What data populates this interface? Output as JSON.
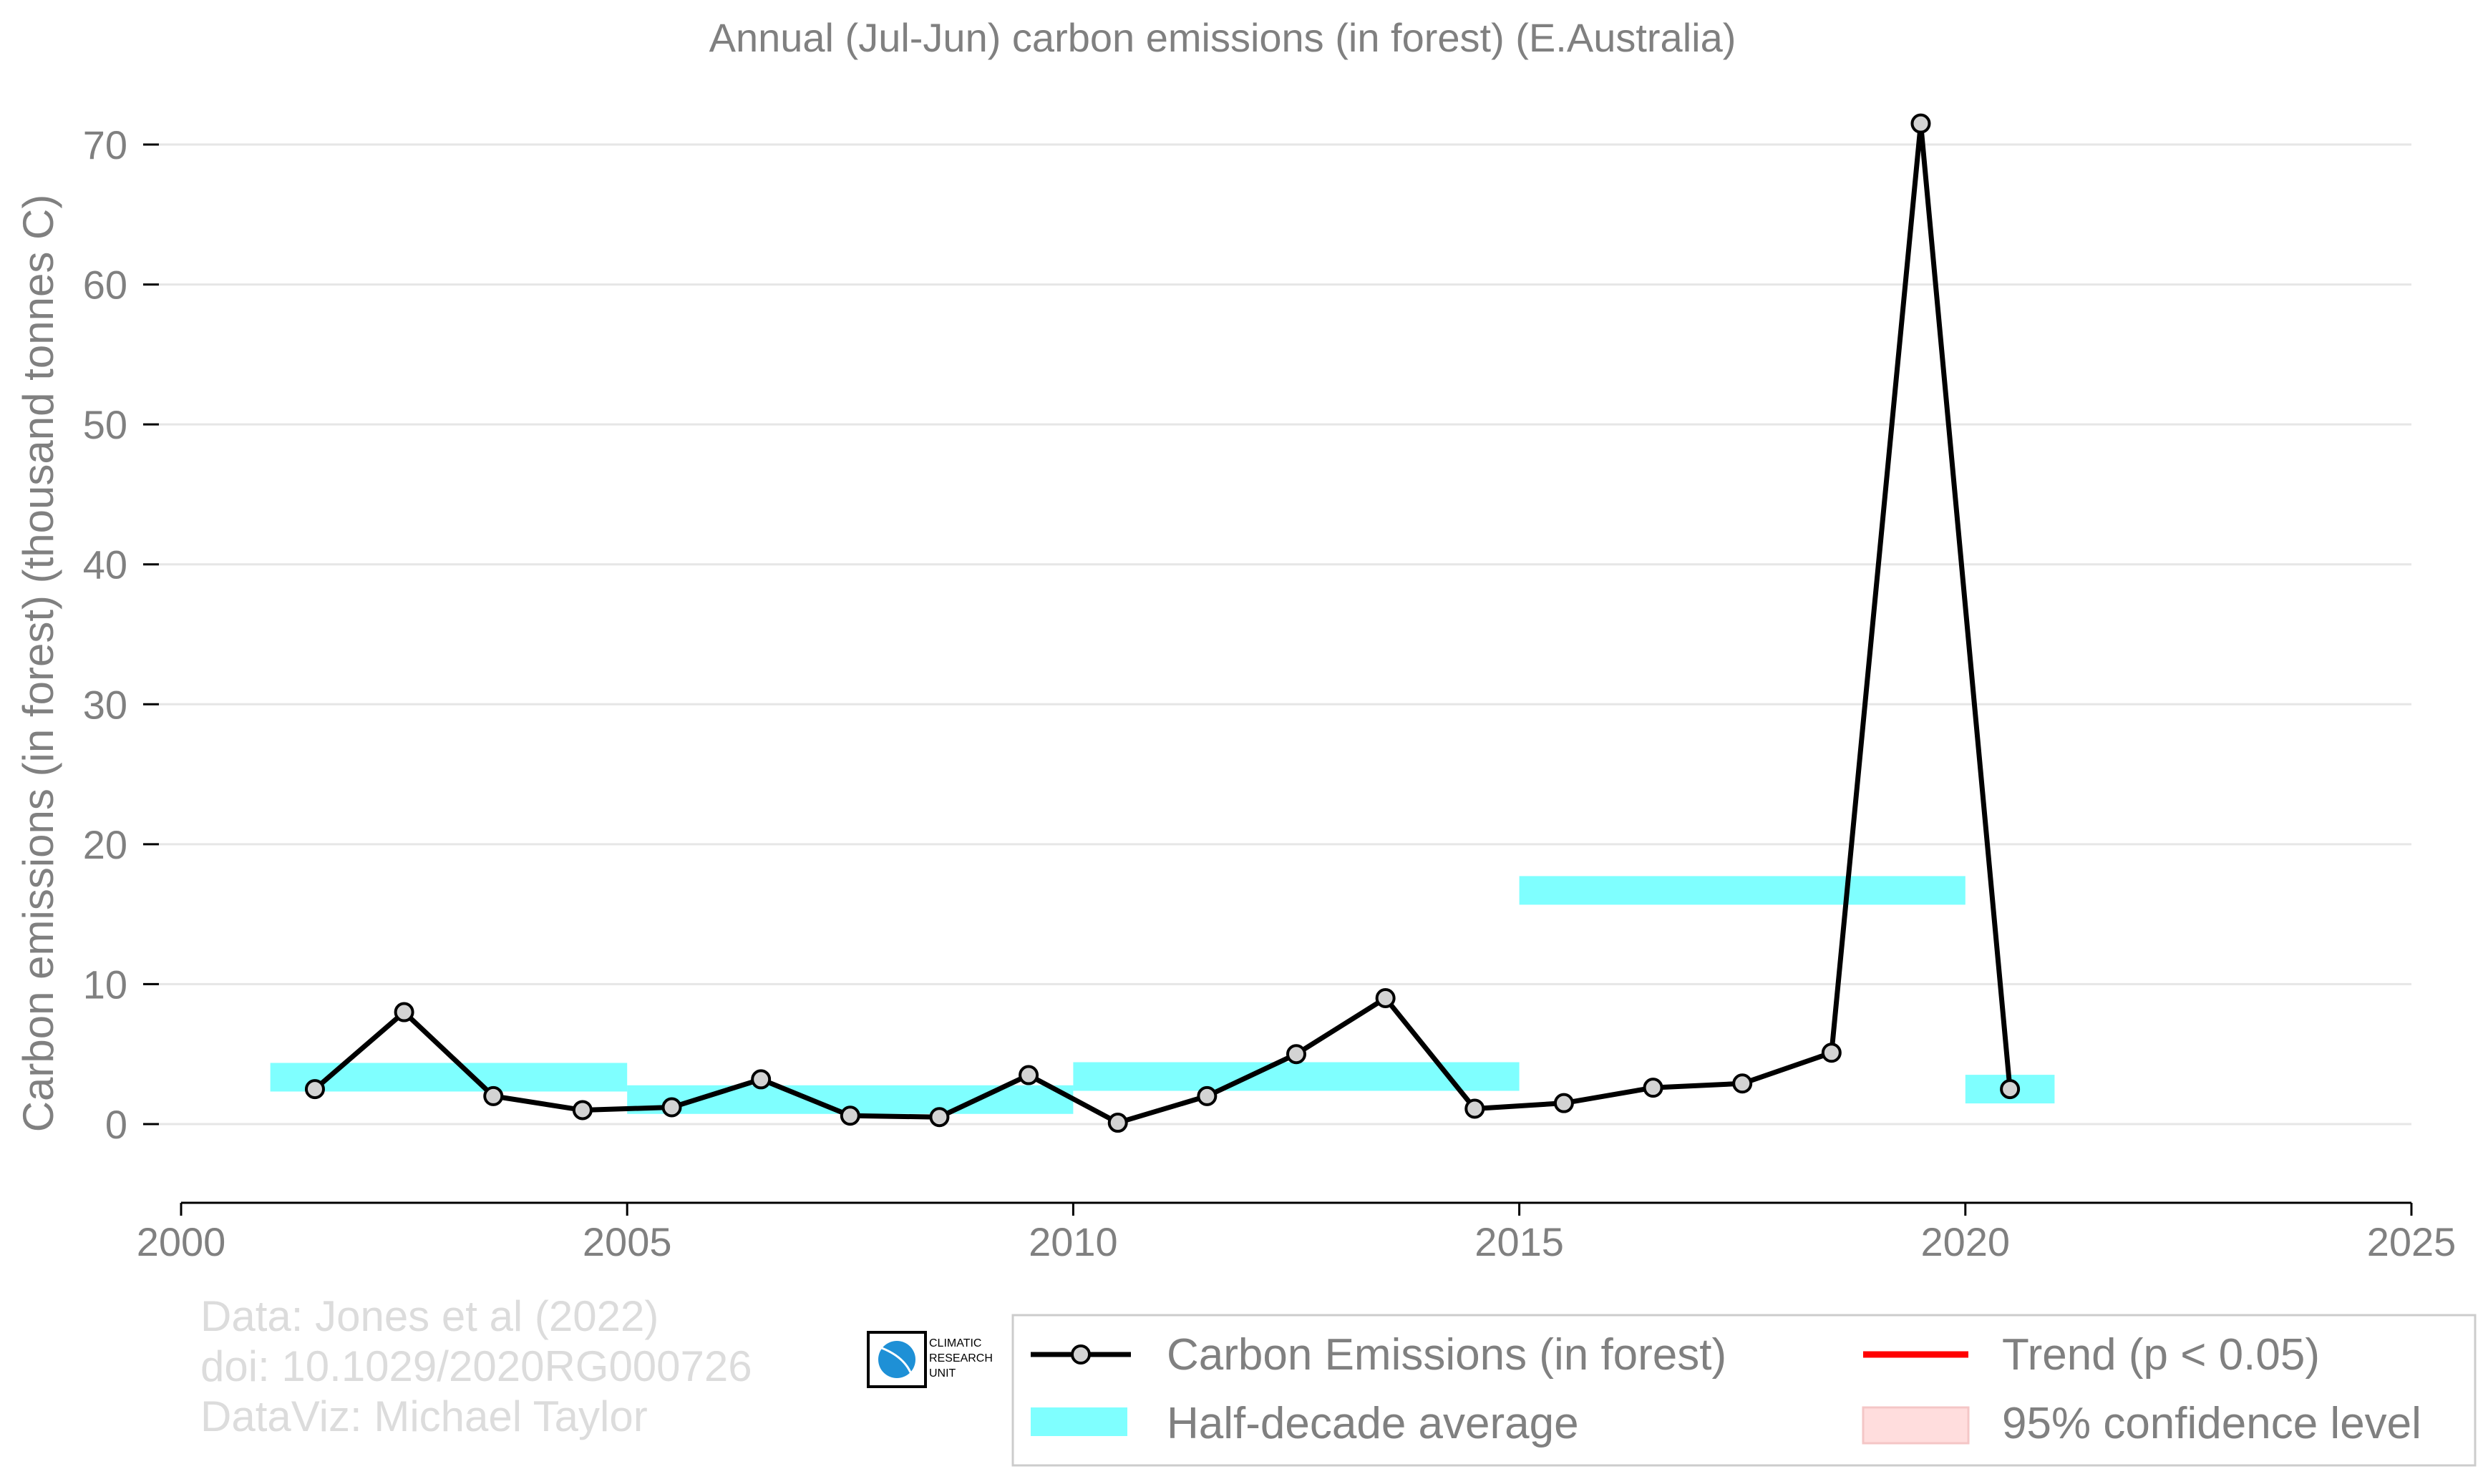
{
  "chart_data": {
    "type": "line",
    "title": "Annual (Jul-Jun) carbon emissions (in forest) (E.Australia)",
    "xlabel": "",
    "ylabel": "Carbon emissions (in forest) (thousand tonnes C)",
    "xlim": [
      2000,
      2025
    ],
    "ylim": [
      -5.7,
      73
    ],
    "xticks": [
      2000,
      2005,
      2010,
      2015,
      2020,
      2025
    ],
    "yticks": [
      0,
      10,
      20,
      30,
      40,
      50,
      60,
      70
    ],
    "grid": "horizontal",
    "legend_position": "bottom-right",
    "series": [
      {
        "name": "Carbon Emissions (in forest)",
        "color": "#000000",
        "marker_fill": "#d3d3d3",
        "x": [
          2001.5,
          2002.5,
          2003.5,
          2004.5,
          2005.5,
          2006.5,
          2007.5,
          2008.5,
          2009.5,
          2010.5,
          2011.5,
          2012.5,
          2013.5,
          2014.5,
          2015.5,
          2016.5,
          2017.5,
          2018.5,
          2019.5,
          2020.5
        ],
        "y": [
          2.5,
          8.0,
          2.0,
          1.0,
          1.2,
          3.2,
          0.6,
          0.5,
          3.5,
          0.1,
          2.0,
          5.0,
          9.0,
          1.1,
          1.5,
          2.6,
          2.9,
          5.1,
          71.5,
          2.5
        ]
      }
    ],
    "half_decade_average": {
      "name": "Half-decade average",
      "color": "#00ffff",
      "segments": [
        {
          "x0": 2001,
          "x1": 2005,
          "y": 3.35
        },
        {
          "x0": 2005,
          "x1": 2010,
          "y": 1.75
        },
        {
          "x0": 2010,
          "x1": 2015,
          "y": 3.4
        },
        {
          "x0": 2015,
          "x1": 2020,
          "y": 16.7
        },
        {
          "x0": 2020,
          "x1": 2021,
          "y": 2.5
        }
      ]
    },
    "trend": {
      "name": "Trend (p < 0.05)",
      "color": "#ff0000"
    },
    "confidence": {
      "name": "95% confidence level",
      "color": "#ffdddd"
    }
  },
  "credits": {
    "line1": "Data: Jones et al (2022)",
    "line2": "doi: 10.1029/2020RG000726",
    "line3": "DataViz: Michael Taylor"
  },
  "logo": {
    "text": [
      "CLIMATIC",
      "RESEARCH",
      "UNIT"
    ],
    "color": "#1e90d6"
  }
}
